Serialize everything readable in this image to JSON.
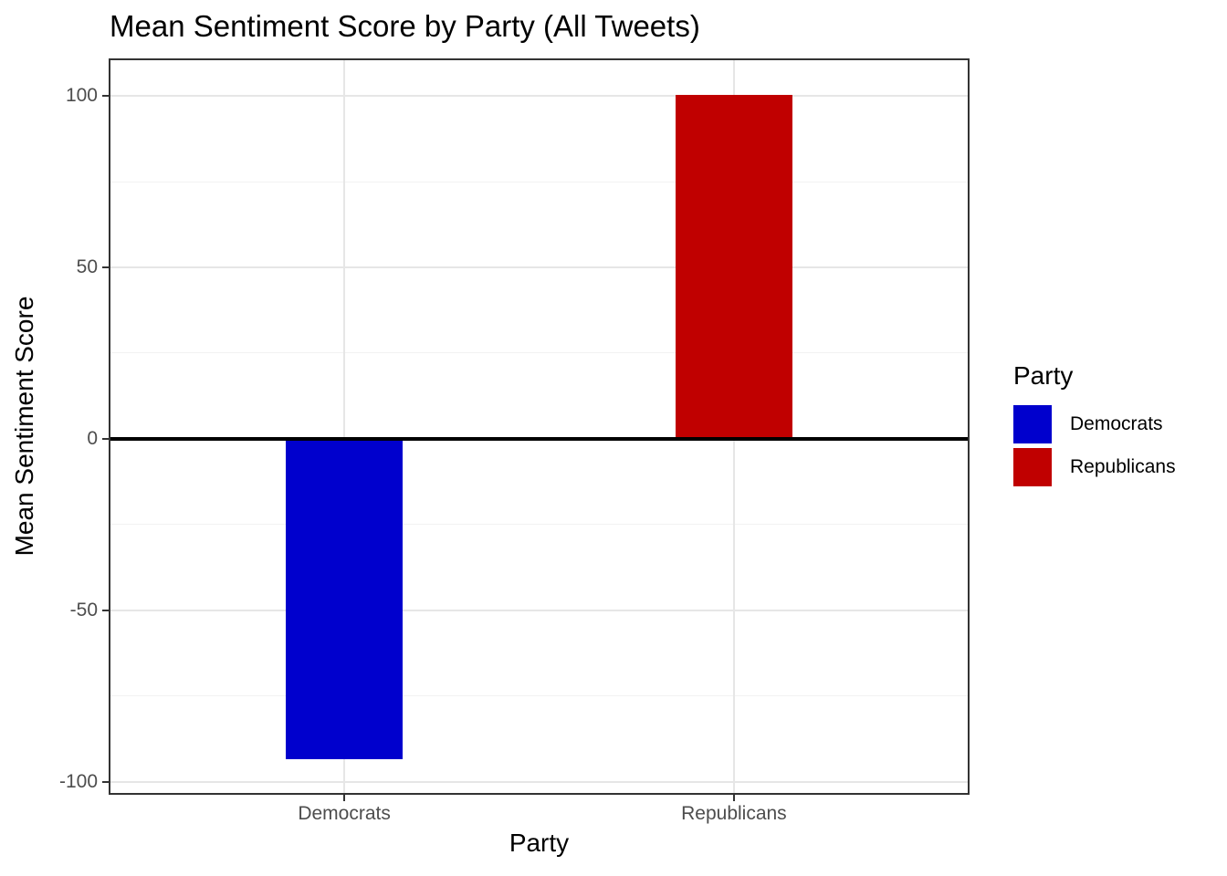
{
  "chart_data": {
    "type": "bar",
    "title": "Mean Sentiment Score by Party (All Tweets)",
    "xlabel": "Party",
    "ylabel": "Mean Sentiment Score",
    "categories": [
      "Democrats",
      "Republicans"
    ],
    "values": [
      -93.4,
      100.4
    ],
    "bar_colors": [
      "#0000CD",
      "#C00000"
    ],
    "ylim": [
      -103.3,
      110.4
    ],
    "yticks": [
      100,
      50,
      0,
      -50,
      -100
    ],
    "ytick_labels": [
      "100",
      "50",
      "0",
      "-50",
      "-100"
    ],
    "yticks_minor": [
      75,
      25,
      -25,
      -75
    ],
    "grid": true,
    "zero_line_y": 0,
    "legend": {
      "title": "Party",
      "position": "right",
      "entries": [
        {
          "label": "Democrats",
          "color": "#0000CD"
        },
        {
          "label": "Republicans",
          "color": "#C00000"
        }
      ]
    }
  },
  "style": {
    "background": "#FFFFFF",
    "grid_major_color": "#E6E6E6",
    "grid_minor_color": "#F2F2F2",
    "panel_border_color": "#333333",
    "tick_text_color": "#4D4D4D",
    "axis_title_color": "#000000",
    "zero_line_color": "#000000"
  }
}
